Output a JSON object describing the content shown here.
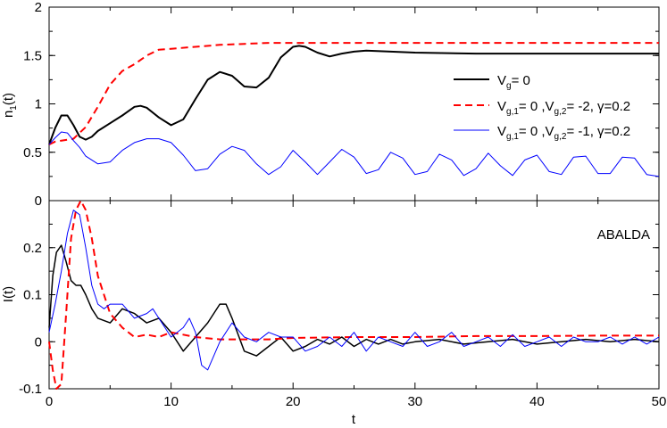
{
  "chart_data": [
    {
      "type": "line",
      "panel": "top",
      "ylabel": "n",
      "ylabel_sub": "1",
      "ylabel_suffix": "(t)",
      "xlim": [
        0,
        50
      ],
      "ylim": [
        0,
        2
      ],
      "xticks": [
        0,
        10,
        20,
        30,
        40,
        50
      ],
      "yticks": [
        "0",
        "0.5",
        "1",
        "1.5",
        "2"
      ],
      "legend_position": "right",
      "series": [
        {
          "name": "Vg=0",
          "legend": {
            "main": "V",
            "sub": "g",
            "rest": "= 0"
          },
          "color": "#000000",
          "dash": "solid",
          "width": 2,
          "x": [
            0,
            0.5,
            1,
            1.5,
            2,
            2.5,
            3,
            3.5,
            4,
            5,
            6,
            7,
            7.5,
            8,
            9,
            10,
            11,
            12,
            13,
            14,
            15,
            16,
            17,
            18,
            19,
            20,
            20.5,
            21,
            22,
            23,
            24,
            25,
            26,
            28,
            30,
            35,
            40,
            45,
            50
          ],
          "y": [
            0.58,
            0.75,
            0.88,
            0.88,
            0.78,
            0.66,
            0.63,
            0.66,
            0.72,
            0.8,
            0.88,
            0.97,
            0.98,
            0.96,
            0.86,
            0.78,
            0.84,
            1.05,
            1.25,
            1.33,
            1.29,
            1.18,
            1.17,
            1.27,
            1.48,
            1.59,
            1.6,
            1.59,
            1.53,
            1.49,
            1.52,
            1.54,
            1.55,
            1.54,
            1.53,
            1.52,
            1.52,
            1.52,
            1.52
          ]
        },
        {
          "name": "Vg,1=0 ,Vg,2=-2, gamma=0.2",
          "legend": {
            "main": "V",
            "sub": "g,1",
            "rest": "= 0 ,V",
            "sub2": "g,2",
            "rest2": "= -2, γ=0.2"
          },
          "color": "#ff0000",
          "dash": "8,5",
          "width": 2,
          "x": [
            0,
            0.5,
            1,
            2,
            3,
            4,
            5,
            6,
            7,
            8,
            9,
            10,
            12,
            14,
            16,
            18,
            20,
            25,
            30,
            40,
            50
          ],
          "y": [
            0.58,
            0.61,
            0.62,
            0.64,
            0.76,
            0.97,
            1.2,
            1.34,
            1.41,
            1.5,
            1.56,
            1.57,
            1.59,
            1.61,
            1.62,
            1.63,
            1.63,
            1.63,
            1.63,
            1.63,
            1.63
          ]
        },
        {
          "name": "Vg,1=0 ,Vg,2=-1, gamma=0.2",
          "legend": {
            "main": "V",
            "sub": "g,1",
            "rest": "= 0 ,V",
            "sub2": "g,2",
            "rest2": "= -1, γ=0.2"
          },
          "color": "#0000ff",
          "dash": "solid",
          "width": 1,
          "x": [
            0,
            0.5,
            1,
            1.5,
            2,
            2.5,
            3,
            4,
            5,
            6,
            7,
            8,
            9,
            10,
            11,
            12,
            13,
            14,
            15,
            16,
            17,
            18,
            19,
            20,
            21,
            22,
            23,
            24,
            25,
            26,
            27,
            28,
            29,
            30,
            31,
            32,
            33,
            34,
            35,
            36,
            37,
            38,
            39,
            40,
            41,
            42,
            43,
            44,
            45,
            46,
            47,
            48,
            49,
            50
          ],
          "y": [
            0.58,
            0.65,
            0.71,
            0.7,
            0.62,
            0.55,
            0.46,
            0.38,
            0.4,
            0.52,
            0.6,
            0.64,
            0.64,
            0.6,
            0.47,
            0.31,
            0.33,
            0.48,
            0.56,
            0.52,
            0.38,
            0.27,
            0.35,
            0.52,
            0.4,
            0.27,
            0.4,
            0.53,
            0.45,
            0.28,
            0.32,
            0.5,
            0.44,
            0.27,
            0.3,
            0.48,
            0.42,
            0.26,
            0.33,
            0.49,
            0.36,
            0.26,
            0.42,
            0.47,
            0.3,
            0.27,
            0.45,
            0.46,
            0.28,
            0.28,
            0.45,
            0.44,
            0.27,
            0.25
          ]
        }
      ]
    },
    {
      "type": "line",
      "panel": "bottom",
      "ylabel": "I(t)",
      "xlabel": "t",
      "xlim": [
        0,
        50
      ],
      "ylim": [
        -0.1,
        0.3
      ],
      "xticks": [
        0,
        10,
        20,
        30,
        40,
        50
      ],
      "yticks": [
        "-0.1",
        "0",
        "0.1",
        "0.2"
      ],
      "annotation": "ABALDA",
      "series": [
        {
          "name": "Vg=0",
          "color": "#000000",
          "dash": "solid",
          "width": 1.5,
          "x": [
            0,
            0.3,
            0.6,
            1,
            1.4,
            1.8,
            2.2,
            2.6,
            3,
            3.5,
            4,
            5,
            6,
            7,
            8,
            9,
            10,
            11,
            12,
            13,
            14,
            14.5,
            15,
            16,
            17,
            18,
            19,
            20,
            21,
            22,
            23,
            24,
            25,
            26,
            27,
            28,
            29,
            30,
            32,
            34,
            36,
            38,
            40,
            42,
            44,
            46,
            48,
            50
          ],
          "y": [
            0.03,
            0.14,
            0.19,
            0.205,
            0.17,
            0.13,
            0.12,
            0.12,
            0.1,
            0.07,
            0.05,
            0.04,
            0.07,
            0.06,
            0.04,
            0.05,
            0.02,
            -0.02,
            0.01,
            0.04,
            0.08,
            0.08,
            0.05,
            -0.02,
            -0.03,
            -0.01,
            0.01,
            -0.02,
            -0.01,
            0.005,
            -0.005,
            0.01,
            -0.01,
            0.005,
            -0.005,
            0.005,
            -0.005,
            0.0,
            0.005,
            -0.005,
            0.0,
            0.005,
            -0.005,
            0.0,
            0.005,
            0.0,
            0.005,
            0.0
          ]
        },
        {
          "name": "Vg,1=0 ,Vg,2=-2, gamma=0.2",
          "color": "#ff0000",
          "dash": "8,5",
          "width": 2,
          "x": [
            0,
            0.3,
            0.6,
            1,
            1.4,
            1.8,
            2.2,
            2.6,
            3,
            3.5,
            4,
            5,
            6,
            7,
            8,
            9,
            10,
            12,
            14,
            16,
            18,
            20,
            25,
            30,
            35,
            40,
            45,
            50
          ],
          "y": [
            0.0,
            -0.06,
            -0.1,
            -0.09,
            0.06,
            0.22,
            0.28,
            0.3,
            0.28,
            0.22,
            0.14,
            0.06,
            0.03,
            0.01,
            0.015,
            0.01,
            0.02,
            0.01,
            0.005,
            0.005,
            0.005,
            0.008,
            0.01,
            0.01,
            0.012,
            0.012,
            0.013,
            0.013
          ]
        },
        {
          "name": "Vg,1=0 ,Vg,2=-1, gamma=0.2",
          "color": "#0000ff",
          "dash": "solid",
          "width": 1,
          "x": [
            0,
            0.5,
            1,
            1.5,
            2,
            2.5,
            3,
            3.5,
            4,
            4.5,
            5,
            6,
            7,
            8,
            8.5,
            9,
            10,
            11,
            11.5,
            12,
            12.5,
            13,
            14,
            15,
            16,
            17,
            18,
            19,
            20,
            21,
            22,
            23,
            24,
            25,
            26,
            27,
            28,
            29,
            30,
            31,
            32,
            33,
            34,
            35,
            36,
            37,
            38,
            39,
            40,
            41,
            42,
            43,
            44,
            45,
            46,
            47,
            48,
            49,
            50
          ],
          "y": [
            0.02,
            0.08,
            0.15,
            0.23,
            0.28,
            0.27,
            0.2,
            0.12,
            0.08,
            0.07,
            0.08,
            0.08,
            0.05,
            0.06,
            0.07,
            0.05,
            0.01,
            0.03,
            0.05,
            0.02,
            -0.05,
            -0.06,
            0.0,
            0.04,
            0.01,
            0.0,
            0.02,
            0.01,
            0.01,
            -0.02,
            -0.01,
            0.01,
            -0.01,
            0.02,
            -0.02,
            0.01,
            0.0,
            -0.01,
            0.02,
            -0.01,
            0.0,
            0.02,
            -0.01,
            0.0,
            0.01,
            -0.01,
            0.015,
            -0.01,
            0.0,
            0.01,
            -0.01,
            0.01,
            0.0,
            0.0,
            0.01,
            -0.005,
            0.01,
            -0.005,
            0.01
          ]
        }
      ]
    }
  ]
}
